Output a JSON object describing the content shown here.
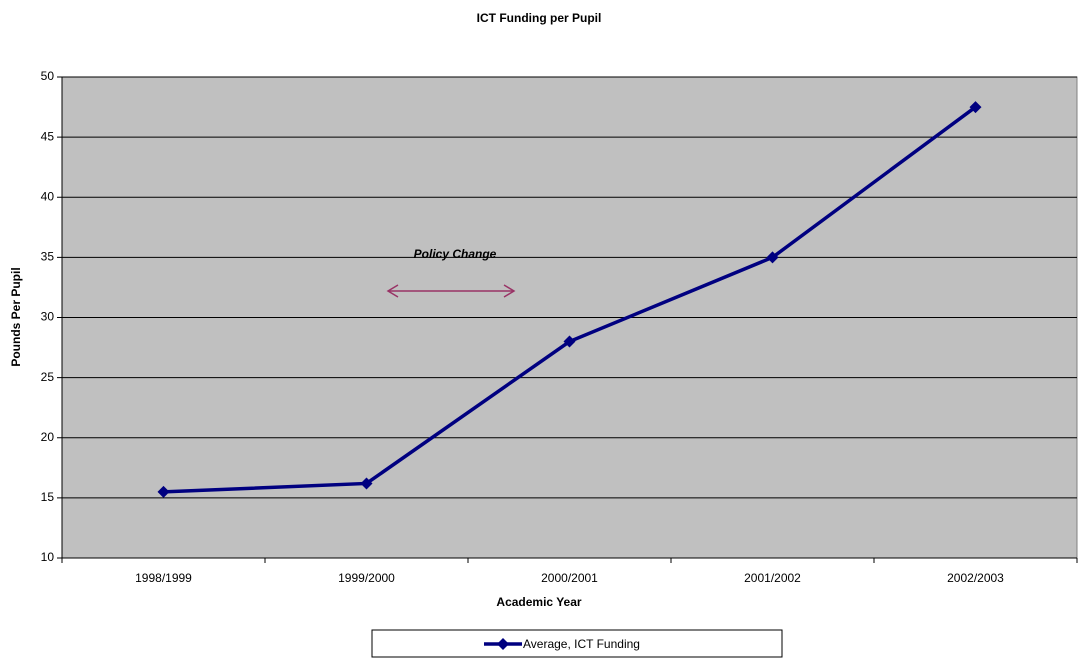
{
  "chart_data": {
    "type": "line",
    "title": "ICT Funding per Pupil",
    "x_label": "Academic Year",
    "y_label": "Pounds Per Pupil",
    "categories": [
      "1998/1999",
      "1999/2000",
      "2000/2001",
      "2001/2002",
      "2002/2003"
    ],
    "series": [
      {
        "name": "Average, ICT Funding",
        "color": "#000080",
        "values": [
          15.5,
          16.2,
          28,
          35,
          47.5
        ]
      }
    ],
    "ylim": [
      10,
      50
    ],
    "yticks": [
      10,
      15,
      20,
      25,
      30,
      35,
      40,
      45,
      50
    ],
    "grid": true,
    "annotations": [
      "Policy Change"
    ],
    "legend": "bottom"
  }
}
